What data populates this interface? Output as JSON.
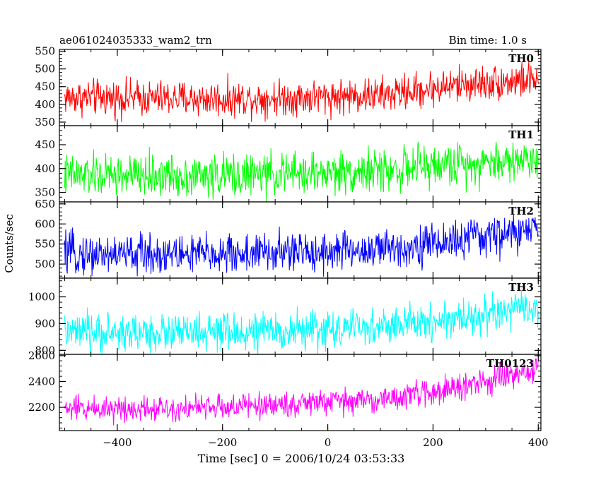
{
  "header": {
    "title": "ae061024035333_wam2_trn",
    "bin_time": "Bin time: 1.0 s"
  },
  "axes": {
    "xlabel": "Time [sec] 0 = 2006/10/24 03:53:33",
    "ylabel": "Counts/sec"
  },
  "chart_data": [
    {
      "type": "line",
      "series": [
        {
          "name": "TH0",
          "color": "#ff0000"
        }
      ],
      "x_range": [
        -510,
        405
      ],
      "ylim": [
        340,
        555
      ],
      "y_ticks": [
        350,
        400,
        450,
        500,
        550
      ],
      "x_ticks": [
        -400,
        -200,
        0,
        200,
        400
      ],
      "trend": {
        "x": [
          -500,
          -200,
          100,
          250,
          400
        ],
        "y": [
          420,
          415,
          425,
          455,
          470
        ]
      },
      "noise": 25
    },
    {
      "type": "line",
      "series": [
        {
          "name": "TH1",
          "color": "#00ff00"
        }
      ],
      "x_range": [
        -510,
        405
      ],
      "ylim": [
        330,
        490
      ],
      "y_ticks": [
        350,
        400,
        450
      ],
      "x_ticks": [
        -400,
        -200,
        0,
        200,
        400
      ],
      "trend": {
        "x": [
          -500,
          -200,
          100,
          250,
          400
        ],
        "y": [
          385,
          385,
          395,
          410,
          420
        ]
      },
      "noise": 22
    },
    {
      "type": "line",
      "series": [
        {
          "name": "TH2",
          "color": "#0000ff"
        }
      ],
      "x_range": [
        -510,
        405
      ],
      "ylim": [
        465,
        655
      ],
      "y_ticks": [
        500,
        550,
        600,
        650
      ],
      "x_ticks": [
        -400,
        -200,
        0,
        200,
        400
      ],
      "trend": {
        "x": [
          -500,
          -200,
          100,
          250,
          400
        ],
        "y": [
          525,
          525,
          535,
          560,
          585
        ]
      },
      "noise": 25
    },
    {
      "type": "line",
      "series": [
        {
          "name": "TH3",
          "color": "#00ffff"
        }
      ],
      "x_range": [
        -510,
        405
      ],
      "ylim": [
        785,
        1070
      ],
      "y_ticks": [
        800,
        900,
        1000
      ],
      "x_ticks": [
        -400,
        -200,
        0,
        200,
        400
      ],
      "trend": {
        "x": [
          -500,
          -200,
          100,
          250,
          400
        ],
        "y": [
          865,
          865,
          885,
          920,
          960
        ]
      },
      "noise": 35
    },
    {
      "type": "line",
      "series": [
        {
          "name": "TH0123",
          "color": "#ff00ff"
        }
      ],
      "x_range": [
        -510,
        405
      ],
      "ylim": [
        2020,
        2610
      ],
      "y_ticks": [
        2200,
        2400,
        2600
      ],
      "x_ticks": [
        -400,
        -200,
        0,
        200,
        400
      ],
      "trend": {
        "x": [
          -500,
          -200,
          100,
          250,
          400
        ],
        "y": [
          2190,
          2200,
          2260,
          2350,
          2490
        ]
      },
      "noise": 50
    }
  ]
}
